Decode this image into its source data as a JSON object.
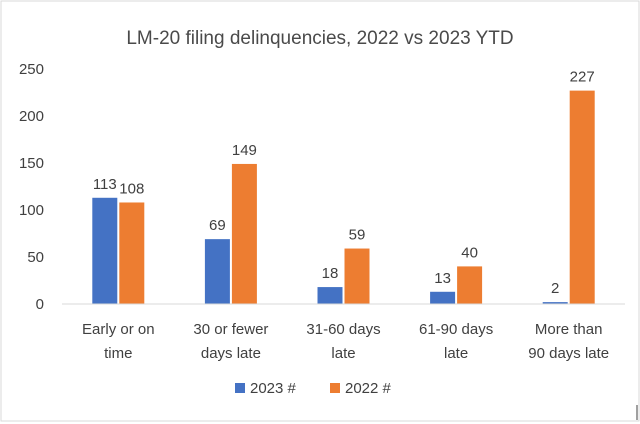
{
  "chart_data": {
    "type": "bar",
    "title": "LM-20 filing delinquencies, 2022 vs 2023 YTD",
    "xlabel": "",
    "ylabel": "",
    "categories": [
      [
        "Early or on",
        "time"
      ],
      [
        "30 or fewer",
        "days late"
      ],
      [
        "31-60 days",
        "late"
      ],
      [
        "61-90 days",
        "late"
      ],
      [
        "More than",
        "90 days late"
      ]
    ],
    "series": [
      {
        "name": "2023 #",
        "color": "#4472C4",
        "values": [
          113,
          69,
          18,
          13,
          2
        ]
      },
      {
        "name": "2022 #",
        "color": "#ED7D31",
        "values": [
          108,
          149,
          59,
          40,
          227
        ]
      }
    ],
    "ylim": [
      0,
      250
    ],
    "yticks": [
      0,
      50,
      100,
      150,
      200,
      250
    ],
    "grid": false,
    "legend_position": "bottom"
  }
}
